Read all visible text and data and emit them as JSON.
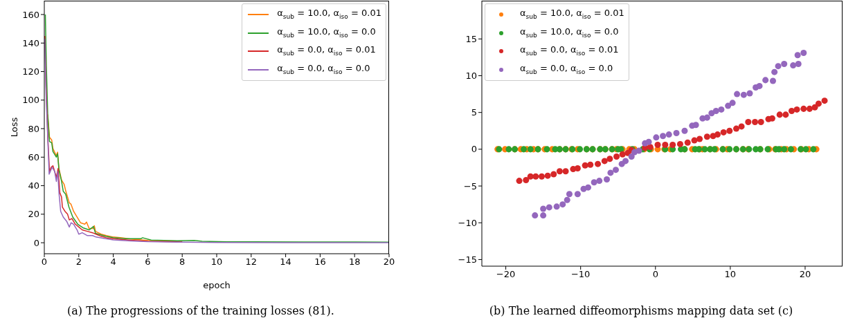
{
  "chart_data": [
    {
      "type": "line",
      "xlabel": "epoch",
      "ylabel": "Loss",
      "xlim": [
        0,
        20
      ],
      "ylim": [
        -7.7,
        169.7
      ],
      "xticks": [
        0,
        2,
        4,
        6,
        8,
        10,
        12,
        14,
        16,
        18,
        20
      ],
      "yticks": [
        0,
        20,
        40,
        60,
        80,
        100,
        120,
        140,
        160
      ],
      "grid": false,
      "legend": "top right",
      "marker": "none",
      "line_style": "solid",
      "annotations": [
        "(a) The progressions of the training losses (81)."
      ],
      "series": [
        {
          "name": "α$_{sub}$ = 10.0, α$_{iso}$ = 0.01",
          "color": "#ff7f0e",
          "x": [
            0.2,
            0.3,
            0.43,
            0.5,
            0.7,
            0.77,
            0.85,
            1.0,
            1.15,
            1.25,
            1.45,
            1.55,
            1.7,
            1.9,
            2.1,
            2.35,
            2.45,
            2.6,
            2.85,
            2.9,
            2.97,
            3.3,
            3.6,
            4.0,
            4.5,
            5,
            6,
            8
          ],
          "values": [
            90,
            74,
            72,
            66,
            61,
            63.5,
            52,
            44,
            41,
            36,
            28,
            27,
            22,
            18,
            14,
            13,
            14.5,
            10,
            10,
            12,
            8,
            6,
            5,
            4,
            3.5,
            2.6,
            1.6,
            1.0
          ]
        },
        {
          "name": "α$_{sub}$ = 10.0, α$_{iso}$ = 0.0",
          "color": "#2ca02c",
          "x": [
            0.06,
            0.12,
            0.2,
            0.3,
            0.43,
            0.5,
            0.7,
            0.77,
            0.85,
            1.0,
            1.1,
            1.24,
            1.43,
            1.65,
            1.94,
            2.24,
            2.6,
            2.85,
            2.97,
            3.56,
            4.0,
            4.74,
            5.6,
            5.7,
            6.2,
            7.7,
            8.7,
            9.15,
            10.6,
            12.1,
            15,
            18,
            20
          ],
          "values": [
            160,
            124,
            89,
            71,
            70,
            64,
            60,
            62.5,
            51,
            43,
            36,
            34,
            25,
            18,
            13,
            10.5,
            9,
            11.4,
            6.6,
            4.5,
            3.6,
            2.8,
            2.8,
            3.5,
            1.9,
            1.4,
            1.6,
            1.0,
            0.7,
            0.7,
            0.5,
            0.5,
            0.4
          ]
        },
        {
          "name": "α$_{sub}$ = 0.0, α$_{iso}$ = 0.01",
          "color": "#d62728",
          "x": [
            0.03,
            0.1,
            0.2,
            0.3,
            0.4,
            0.5,
            0.6,
            0.7,
            0.8,
            0.9,
            1.0,
            1.05,
            1.2,
            1.35,
            1.45,
            1.6,
            1.8,
            2.0,
            2.2,
            2.5,
            2.8,
            3.0,
            3.3,
            3.6,
            4.0,
            5,
            6,
            8
          ],
          "values": [
            145,
            110,
            75,
            50,
            53,
            54,
            50,
            46,
            52,
            35,
            32,
            25,
            22,
            20,
            16,
            17,
            13,
            11,
            9,
            8,
            7,
            6,
            4.5,
            3.5,
            2.8,
            1.8,
            1.0,
            0.6
          ]
        },
        {
          "name": "α$_{sub}$ = 0.0, α$_{iso}$ = 0.0",
          "color": "#9467bd",
          "x": [
            0.03,
            0.1,
            0.18,
            0.28,
            0.35,
            0.45,
            0.6,
            0.7,
            0.78,
            0.85,
            0.95,
            1.1,
            1.3,
            1.45,
            1.55,
            1.7,
            1.9,
            2.0,
            2.2,
            2.5,
            2.8,
            3.0,
            3.5,
            4.0,
            5,
            6,
            8,
            10,
            14,
            20
          ],
          "values": [
            143,
            105,
            80,
            48,
            50,
            53,
            50,
            43,
            50,
            35,
            22,
            18,
            15,
            11,
            14,
            13,
            9,
            6,
            7,
            5,
            5,
            4,
            3,
            2,
            1.3,
            0.8,
            0.4,
            0.2,
            0.1,
            0.1
          ]
        }
      ]
    },
    {
      "type": "scatter",
      "xlim": [
        -23.2,
        25
      ],
      "ylim": [
        -15.9,
        20.2
      ],
      "xticks": [
        {
          "value": -20,
          "label": "−20"
        },
        {
          "value": -10,
          "label": "−10"
        },
        0,
        10,
        20
      ],
      "yticks": [
        {
          "value": -15,
          "label": "−15"
        },
        {
          "value": -10,
          "label": "−10"
        },
        {
          "value": -5,
          "label": "−5"
        },
        0,
        5,
        10,
        15
      ],
      "grid": false,
      "legend": "top left",
      "marker": "circle",
      "annotations": [
        "(b) The learned diffeomorphisms mapping data set (c)"
      ],
      "series": [
        {
          "name": "α$_{sub}$ = 10.0, α$_{iso}$ = 0.01",
          "color": "#ff7f0e",
          "x": [
            -21.1,
            -20.1,
            -18.8,
            -18.0,
            -17.2,
            -16.3,
            -15.7,
            -14.8,
            -13.8,
            -12.8,
            -12.0,
            -11.2,
            -10.4,
            -9.2,
            -8.4,
            -7.4,
            -6.7,
            -5.8,
            -5.2,
            -4.4,
            -3.5,
            -2.8,
            -1.5,
            -0.6,
            0.3,
            1.2,
            2.0,
            3.9,
            4.9,
            5.9,
            6.3,
            7.3,
            8.1,
            9.0,
            9.6,
            10.8,
            11.7,
            12.4,
            14.0,
            15.2,
            16.0,
            16.8,
            17.5,
            18.5,
            19.5,
            20.5,
            21.5
          ],
          "values": [
            0,
            0,
            0,
            0,
            0,
            0,
            0,
            0,
            0,
            0,
            0,
            0,
            0,
            0,
            0,
            0,
            0,
            0,
            0,
            0,
            0,
            0,
            0,
            0,
            0,
            0,
            0,
            0,
            0,
            0,
            0,
            0,
            0,
            0,
            0,
            0,
            0,
            0,
            0,
            0,
            0,
            0,
            0,
            0,
            0,
            0,
            0
          ]
        },
        {
          "name": "α$_{sub}$ = 10.0, α$_{iso}$ = 0.0",
          "color": "#2ca02c",
          "x": [
            -20.9,
            -19.6,
            -18.8,
            -17.6,
            -16.7,
            -15.7,
            -14.5,
            -13.4,
            -12.8,
            -12.0,
            -11.1,
            -10.1,
            -9.2,
            -8.4,
            -7.4,
            -6.7,
            -5.8,
            -5.0,
            -4.6,
            -3.1,
            -1.7,
            -0.8,
            1.3,
            2.3,
            3.4,
            3.9,
            5.3,
            5.8,
            6.6,
            7.3,
            7.9,
            9.0,
            9.9,
            10.8,
            11.7,
            12.5,
            13.4,
            14.0,
            15.0,
            16.1,
            16.5,
            17.2,
            18.1,
            19.4,
            20.1,
            21.1
          ],
          "values": [
            0,
            0,
            0,
            0,
            0,
            0,
            0,
            0,
            0,
            0,
            0,
            0,
            0,
            0,
            0,
            0,
            0,
            0,
            0,
            0,
            0,
            0,
            0,
            0,
            0,
            0,
            0,
            0,
            0,
            0,
            0,
            0,
            0,
            0,
            0,
            0,
            0,
            0,
            0,
            0,
            0,
            0,
            0,
            0,
            0,
            0
          ]
        },
        {
          "name": "α$_{sub}$ = 0.0, α$_{iso}$ = 0.01",
          "color": "#d62728",
          "x": [
            -18.2,
            -17.3,
            -16.7,
            -16.0,
            -15.2,
            -14.4,
            -13.6,
            -12.8,
            -12.0,
            -11.0,
            -10.4,
            -9.4,
            -8.7,
            -7.7,
            -6.8,
            -6.1,
            -5.2,
            -4.4,
            -3.7,
            -3.2,
            -1.4,
            -0.7,
            0.3,
            1.3,
            2.3,
            3.3,
            4.3,
            5.2,
            5.9,
            6.9,
            7.7,
            8.3,
            9.1,
            9.9,
            10.8,
            11.5,
            12.4,
            13.3,
            14.1,
            15.1,
            15.6,
            16.6,
            17.4,
            18.2,
            18.9,
            19.8,
            20.6,
            21.3,
            21.8,
            22.6
          ],
          "values": [
            -4.3,
            -4.2,
            -3.7,
            -3.7,
            -3.7,
            -3.6,
            -3.4,
            -3.0,
            -3.0,
            -2.7,
            -2.6,
            -2.2,
            -2.1,
            -2.0,
            -1.6,
            -1.3,
            -1.0,
            -0.7,
            -0.5,
            -0.1,
            0.2,
            0.3,
            0.6,
            0.6,
            0.6,
            0.7,
            0.9,
            1.2,
            1.4,
            1.7,
            1.8,
            2.0,
            2.3,
            2.5,
            2.8,
            3.1,
            3.7,
            3.7,
            3.7,
            4.1,
            4.2,
            4.7,
            4.7,
            5.2,
            5.4,
            5.5,
            5.5,
            5.7,
            6.2,
            6.6
          ]
        },
        {
          "name": "α$_{sub}$ = 0.0, α$_{iso}$ = 0.0",
          "color": "#9467bd",
          "x": [
            -16.1,
            -15.0,
            -15.0,
            -14.2,
            -13.2,
            -12.4,
            -11.8,
            -11.5,
            -10.4,
            -9.6,
            -9.0,
            -8.2,
            -7.5,
            -6.5,
            -6.0,
            -5.3,
            -4.5,
            -4.0,
            -3.2,
            -2.8,
            -2.2,
            -1.4,
            -0.9,
            0.1,
            1.0,
            1.8,
            2.8,
            3.9,
            4.9,
            5.4,
            6.3,
            6.9,
            7.5,
            8.1,
            8.8,
            9.7,
            10.3,
            10.9,
            11.8,
            12.6,
            13.4,
            13.9,
            14.7,
            15.7,
            15.9,
            16.4,
            17.2,
            18.4,
            19.1,
            19.0,
            19.8
          ],
          "values": [
            -9.0,
            -9.0,
            -8.1,
            -7.9,
            -7.8,
            -7.5,
            -6.9,
            -6.1,
            -6.1,
            -5.4,
            -5.2,
            -4.5,
            -4.3,
            -4.1,
            -3.2,
            -2.8,
            -2.0,
            -1.6,
            -1.0,
            -0.4,
            -0.2,
            0.8,
            1.0,
            1.6,
            1.8,
            2.0,
            2.2,
            2.5,
            3.2,
            3.3,
            4.2,
            4.3,
            4.9,
            5.2,
            5.4,
            5.9,
            6.3,
            7.5,
            7.4,
            7.6,
            8.4,
            8.6,
            9.4,
            9.3,
            10.5,
            11.3,
            11.6,
            11.4,
            11.6,
            12.8,
            13.1
          ]
        }
      ]
    }
  ]
}
